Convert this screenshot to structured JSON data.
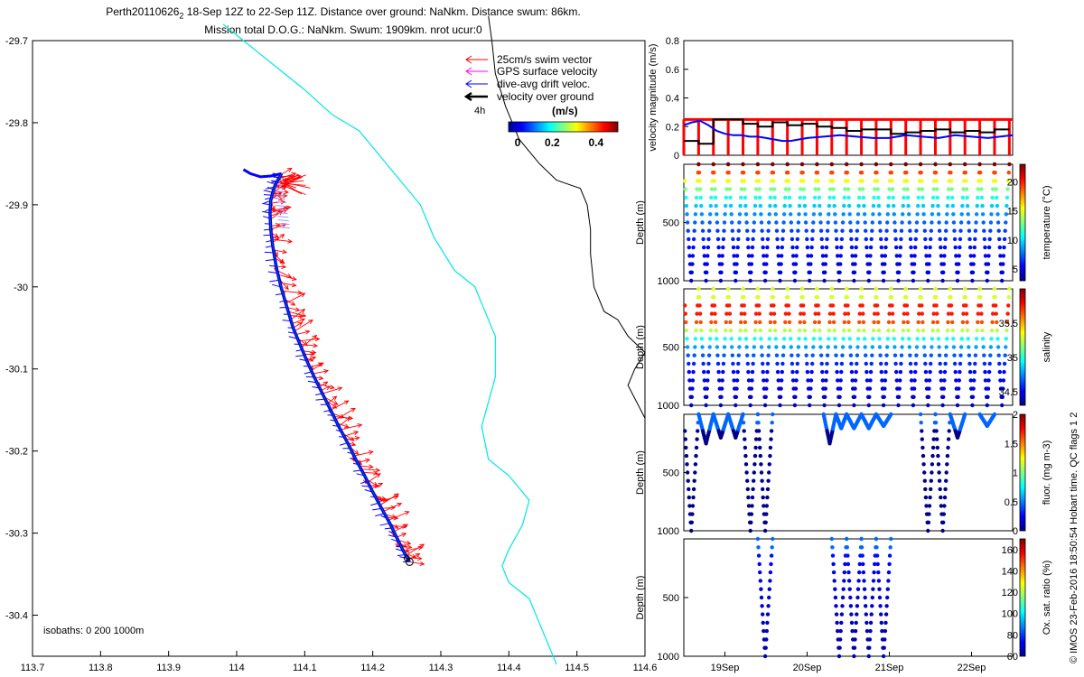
{
  "header": {
    "title_line1_pre": "Perth20110626",
    "title_line1_sub": "2",
    "title_line1_post": " 18-Sep 12Z to 22-Sep 11Z. Distance over ground: NaNkm. Distance swum: 86km.",
    "title_line2": "Mission total D.O.G.: NaNkm. Swum: 1909km. nrot ucur:0"
  },
  "credit": "© IMOS 23-Feb-2016 18:50:54 Hobart time. QC flags 1  2",
  "colors": {
    "swim": "#ff0000",
    "gps": "#ff00ff",
    "drift": "#0000ff",
    "ground": "#000000",
    "isobath_200": "#00e5e5",
    "isobath_1000": "#000000",
    "speed_limit": "#ff0000"
  },
  "chart_data": [
    {
      "type": "scatter",
      "name": "map",
      "xlim": [
        113.7,
        114.6
      ],
      "ylim": [
        -30.45,
        -29.7
      ],
      "x_ticks": [
        "113.7",
        "113.8",
        "113.9",
        "114",
        "114.1",
        "114.2",
        "114.3",
        "114.4",
        "114.5",
        "114.6"
      ],
      "y_ticks": [
        "-29.7",
        "-29.8",
        "-29.9",
        "-30",
        "-30.1",
        "-30.2",
        "-30.3",
        "-30.4"
      ],
      "legend": [
        {
          "label": "25cm/s swim vector",
          "color": "#ff0000"
        },
        {
          "label": "GPS surface velocity",
          "color": "#ff00ff"
        },
        {
          "label": "dive-avg drift veloc.",
          "color": "#0000ff"
        },
        {
          "label": "velocity over ground",
          "color": "#000000"
        }
      ],
      "legend_position": "top-right",
      "annotation": "4h",
      "colorbar": {
        "label": "(m/s)",
        "ticks": [
          "0",
          "0.2",
          "0.4"
        ],
        "range": [
          0,
          0.5
        ]
      },
      "isobath_label": "isobaths: 0   200  1000m",
      "track": {
        "lon": [
          114.254,
          114.245,
          114.235,
          114.225,
          114.213,
          114.2,
          114.188,
          114.175,
          114.163,
          114.15,
          114.138,
          114.126,
          114.114,
          114.103,
          114.093,
          114.083,
          114.074,
          114.065,
          114.058,
          114.053,
          114.05,
          114.049,
          114.05,
          114.053,
          114.057,
          114.062,
          114.066
        ],
        "lat": [
          -30.335,
          -30.322,
          -30.305,
          -30.288,
          -30.27,
          -30.25,
          -30.23,
          -30.21,
          -30.19,
          -30.17,
          -30.15,
          -30.13,
          -30.11,
          -30.09,
          -30.07,
          -30.05,
          -30.025,
          -30.0,
          -29.975,
          -29.95,
          -29.93,
          -29.91,
          -29.895,
          -29.885,
          -29.875,
          -29.868,
          -29.862
        ]
      },
      "drift_tail": {
        "lon": [
          114.066,
          114.05,
          114.035,
          114.02,
          114.01
        ],
        "lat": [
          -29.862,
          -29.865,
          -29.866,
          -29.862,
          -29.857
        ]
      },
      "isobath_200": {
        "lon": [
          113.98,
          114.01,
          114.04,
          114.07,
          114.1,
          114.14,
          114.18,
          114.21,
          114.24,
          114.27,
          114.29,
          114.32,
          114.35,
          114.37,
          114.38,
          114.38,
          114.36,
          114.37,
          114.4,
          114.43,
          114.42,
          114.4,
          114.39,
          114.4,
          114.43,
          114.45,
          114.47
        ],
        "lat": [
          -29.68,
          -29.7,
          -29.72,
          -29.74,
          -29.76,
          -29.79,
          -29.81,
          -29.84,
          -29.87,
          -29.9,
          -29.94,
          -29.98,
          -30.0,
          -30.04,
          -30.06,
          -30.11,
          -30.17,
          -30.21,
          -30.23,
          -30.26,
          -30.29,
          -30.32,
          -30.34,
          -30.36,
          -30.38,
          -30.42,
          -30.46
        ]
      },
      "isobath_1000": {
        "lon": [
          114.37,
          114.375,
          114.38,
          114.395,
          114.415,
          114.445,
          114.47,
          114.505,
          114.515,
          114.52,
          114.52,
          114.525,
          114.54,
          114.56,
          114.575,
          114.6,
          114.585,
          114.575,
          114.6,
          114.6
        ],
        "lat": [
          -29.67,
          -29.7,
          -29.74,
          -29.78,
          -29.82,
          -29.85,
          -29.87,
          -29.88,
          -29.9,
          -29.93,
          -29.96,
          -30.0,
          -30.03,
          -30.04,
          -30.06,
          -30.08,
          -30.1,
          -30.12,
          -30.16,
          -30.2
        ]
      }
    },
    {
      "type": "line",
      "name": "velocity",
      "ylabel": "velocity magnitude (m/s)",
      "ylim": [
        0,
        0.8
      ],
      "y_ticks": [
        "0",
        "0.2",
        "0.4",
        "0.6",
        "0.8"
      ],
      "xlim": [
        18.5,
        22.5
      ],
      "speed_limit": 0.25,
      "dive_times": [
        18.5,
        18.68,
        18.86,
        19.04,
        19.22,
        19.4,
        19.58,
        19.76,
        19.94,
        20.12,
        20.3,
        20.48,
        20.66,
        20.84,
        21.02,
        21.2,
        21.38,
        21.56,
        21.74,
        21.92,
        22.1,
        22.28,
        22.46
      ],
      "ground_speed": [
        0.1,
        0.08,
        0.25,
        0.25,
        0.22,
        0.2,
        0.23,
        0.21,
        0.22,
        0.2,
        0.19,
        0.17,
        0.18,
        0.18,
        0.15,
        0.16,
        0.17,
        0.18,
        0.16,
        0.17,
        0.16,
        0.18
      ],
      "drift": {
        "t": [
          18.5,
          18.6,
          18.7,
          18.8,
          18.9,
          19.0,
          19.1,
          19.2,
          19.3,
          19.4,
          19.5,
          19.6,
          19.7,
          19.8,
          19.9,
          20.0,
          20.2,
          20.4,
          20.6,
          20.8,
          21.0,
          21.2,
          21.4,
          21.6,
          21.8,
          22.0,
          22.2,
          22.5
        ],
        "v": [
          0.21,
          0.23,
          0.24,
          0.21,
          0.17,
          0.15,
          0.14,
          0.14,
          0.13,
          0.13,
          0.12,
          0.11,
          0.1,
          0.1,
          0.11,
          0.12,
          0.13,
          0.14,
          0.13,
          0.12,
          0.12,
          0.14,
          0.13,
          0.12,
          0.14,
          0.13,
          0.12,
          0.14
        ]
      }
    },
    {
      "type": "scatter",
      "name": "temperature",
      "ylabel": "Depth (m)",
      "ylim": [
        1000,
        0
      ],
      "y_ticks": [
        "500",
        "1000"
      ],
      "colorbar": {
        "label": "temperature (°C)",
        "ticks": [
          "5",
          "10",
          "15",
          "20"
        ],
        "range": [
          3,
          23
        ]
      },
      "profile_count": 23,
      "values": {
        "surface": 22,
        "deep": 4
      }
    },
    {
      "type": "scatter",
      "name": "salinity",
      "ylabel": "Depth (m)",
      "ylim": [
        1000,
        0
      ],
      "y_ticks": [
        "500",
        "1000"
      ],
      "colorbar": {
        "label": "salinity",
        "ticks": [
          "34.5",
          "35",
          "35.5"
        ],
        "range": [
          34.3,
          36
        ]
      },
      "profile_count": 23,
      "values": {
        "surface": 35.3,
        "subsurface_max": 35.7,
        "deep": 34.4
      }
    },
    {
      "type": "scatter",
      "name": "fluorescence",
      "ylabel": "Depth (m)",
      "ylim": [
        1000,
        0
      ],
      "y_ticks": [
        "500",
        "1000"
      ],
      "colorbar": {
        "label": "fluor. (mg m-3)",
        "ticks": [
          "0",
          "0.5",
          "1",
          "1.5",
          "2"
        ],
        "range": [
          0,
          2
        ]
      },
      "values": {
        "surface": 0.4,
        "deep": 0.0
      }
    },
    {
      "type": "scatter",
      "name": "oxygen",
      "ylabel": "Depth (m)",
      "ylim": [
        1000,
        0
      ],
      "y_ticks": [
        "500",
        "1000"
      ],
      "x_ticks": [
        "19Sep",
        "20Sep",
        "21Sep",
        "22Sep"
      ],
      "colorbar": {
        "label": "Ox. sat. ratio (%)",
        "ticks": [
          "60",
          "80",
          "100",
          "120",
          "140",
          "160"
        ],
        "range": [
          60,
          170
        ]
      },
      "values": {
        "surface": 85,
        "deep": 65
      }
    }
  ]
}
